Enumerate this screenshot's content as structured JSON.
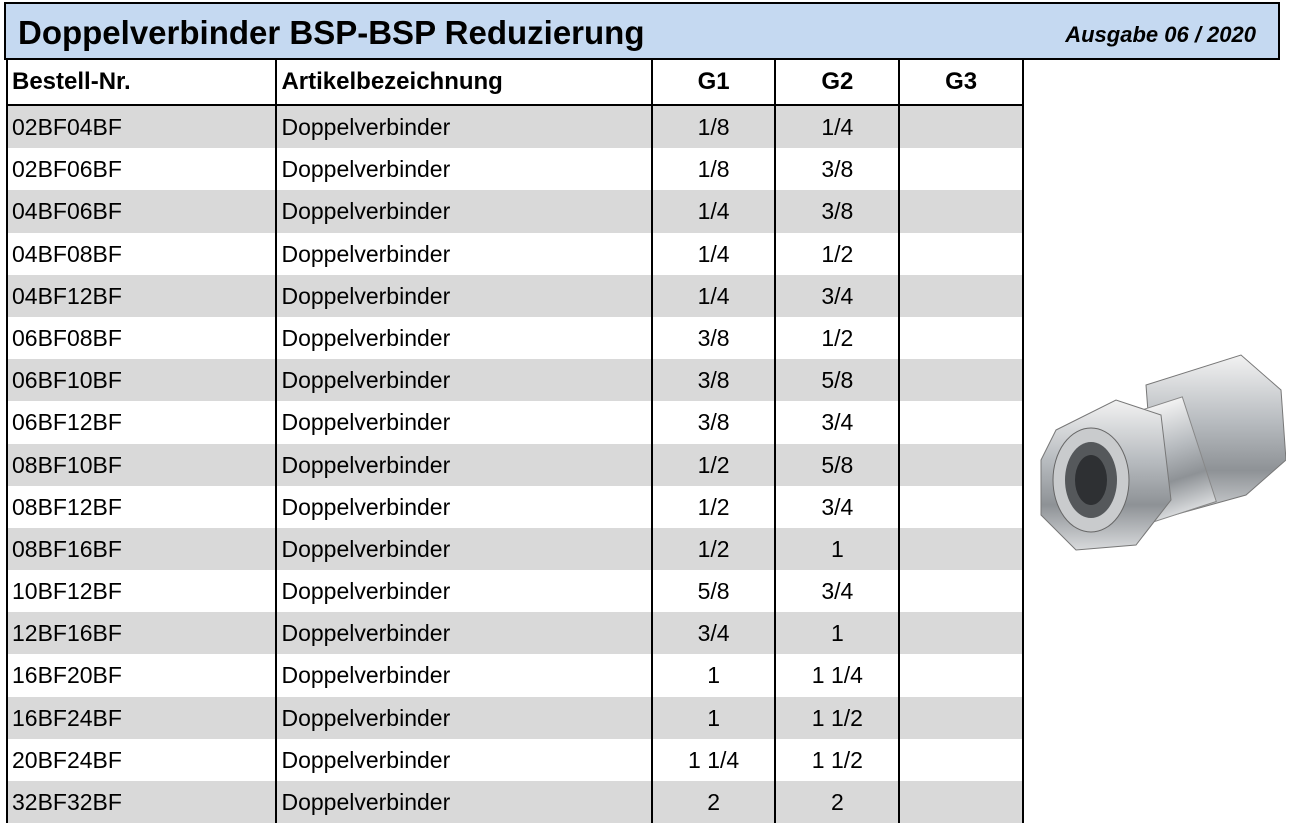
{
  "header": {
    "title": "Doppelverbinder BSP-BSP Reduzierung",
    "edition": "Ausgabe 06 / 2020"
  },
  "table": {
    "columns": [
      "Bestell-Nr.",
      "Artikelbezeichnung",
      "G1",
      "G2",
      "G3"
    ],
    "rows": [
      [
        "02BF04BF",
        "Doppelverbinder",
        "1/8",
        "1/4"
      ],
      [
        "02BF06BF",
        "Doppelverbinder",
        "1/8",
        "3/8"
      ],
      [
        "04BF06BF",
        "Doppelverbinder",
        "1/4",
        "3/8"
      ],
      [
        "04BF08BF",
        "Doppelverbinder",
        "1/4",
        "1/2"
      ],
      [
        "04BF12BF",
        "Doppelverbinder",
        "1/4",
        "3/4"
      ],
      [
        "06BF08BF",
        "Doppelverbinder",
        "3/8",
        "1/2"
      ],
      [
        "06BF10BF",
        "Doppelverbinder",
        "3/8",
        "5/8"
      ],
      [
        "06BF12BF",
        "Doppelverbinder",
        "3/8",
        "3/4"
      ],
      [
        "08BF10BF",
        "Doppelverbinder",
        "1/2",
        "5/8"
      ],
      [
        "08BF12BF",
        "Doppelverbinder",
        "1/2",
        "3/4"
      ],
      [
        "08BF16BF",
        "Doppelverbinder",
        "1/2",
        "1"
      ],
      [
        "10BF12BF",
        "Doppelverbinder",
        "5/8",
        "3/4"
      ],
      [
        "12BF16BF",
        "Doppelverbinder",
        "3/4",
        "1"
      ],
      [
        "16BF20BF",
        "Doppelverbinder",
        "1",
        "1 1/4"
      ],
      [
        "16BF24BF",
        "Doppelverbinder",
        "1",
        "1 1/2"
      ],
      [
        "20BF24BF",
        "Doppelverbinder",
        "1 1/4",
        "1 1/2"
      ],
      [
        "32BF32BF",
        "Doppelverbinder",
        "2",
        "2"
      ]
    ]
  }
}
